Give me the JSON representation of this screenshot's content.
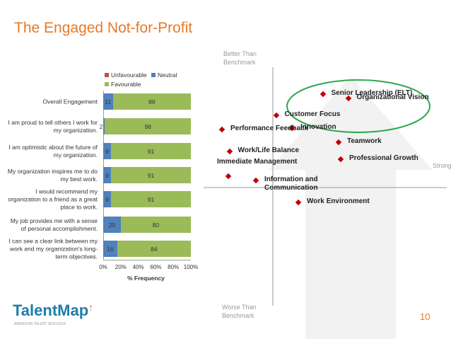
{
  "slide": {
    "title": "The Engaged Not-for-Profit",
    "page_number": "10",
    "logo_text": "TalentMap",
    "logo_subtext": "AMERICAN TALENT SERVICES"
  },
  "colors": {
    "title_orange": "#E8792A",
    "unfavourable": "#C0504D",
    "neutral": "#4F81BD",
    "favourable": "#9BBB59",
    "point_marker": "#C00000",
    "highlight_circle": "#2BA84A",
    "logo_blue": "#1F7CA8",
    "background_arrow": "#F2F2F2"
  },
  "icons": {
    "point_marker": "diamond-icon",
    "logo_accent": "arrow-up-icon",
    "background": "large-up-arrow-shape"
  },
  "chart_data": [
    {
      "type": "bar",
      "orientation": "horizontal",
      "stacked": true,
      "categories": [
        "Overall Engagement",
        "I am proud to tell others I work for my organization.",
        "I am optimistic about the future of my organization.",
        "My organization inspires me to do my best work.",
        "I would recommend my organization to a friend as a great place to work.",
        "My job provides me with a sense of personal accomplishment.",
        "I can see a clear link between my work and my organization's long-term objectives."
      ],
      "series": [
        {
          "name": "Unfavourable",
          "values": [
            0,
            0,
            0,
            0,
            0,
            0,
            0
          ]
        },
        {
          "name": "Neutral",
          "values": [
            11,
            2,
            9,
            9,
            9,
            20,
            16
          ]
        },
        {
          "name": "Favourable",
          "values": [
            89,
            98,
            91,
            91,
            91,
            80,
            84
          ]
        }
      ],
      "xlabel": "% Frequency",
      "xticks": [
        "0%",
        "20%",
        "40%",
        "60%",
        "80%",
        "100%"
      ],
      "xlim": [
        0,
        100
      ],
      "legend_placement": "top",
      "grid": false
    },
    {
      "type": "scatter",
      "quadrant_labels": {
        "top": "Better Than Benchmark",
        "bottom": "Worse Than Benchmark",
        "right": "Strong Engagement Driver"
      },
      "points": [
        {
          "label": "Senior Leadership (ELT)",
          "x": 0.47,
          "y": 0.92,
          "highlighted": true
        },
        {
          "label": "Organizational Vision",
          "x": 0.71,
          "y": 0.88,
          "highlighted": true
        },
        {
          "label": "Customer Focus",
          "x": 0.03,
          "y": 0.71
        },
        {
          "label": "Innovation",
          "x": 0.18,
          "y": 0.59
        },
        {
          "label": "Performance Feedback",
          "x": -0.48,
          "y": 0.57
        },
        {
          "label": "Teamwork",
          "x": 0.62,
          "y": 0.45
        },
        {
          "label": "Work/Life Balance",
          "x": -0.41,
          "y": 0.36
        },
        {
          "label": "Professional Growth",
          "x": 0.64,
          "y": 0.28
        },
        {
          "label": "Immediate Management",
          "x": -0.42,
          "y": 0.11
        },
        {
          "label": "Information and Communication",
          "x": -0.16,
          "y": 0.07
        },
        {
          "label": "Work Environment",
          "x": 0.24,
          "y": -0.15
        }
      ]
    }
  ]
}
